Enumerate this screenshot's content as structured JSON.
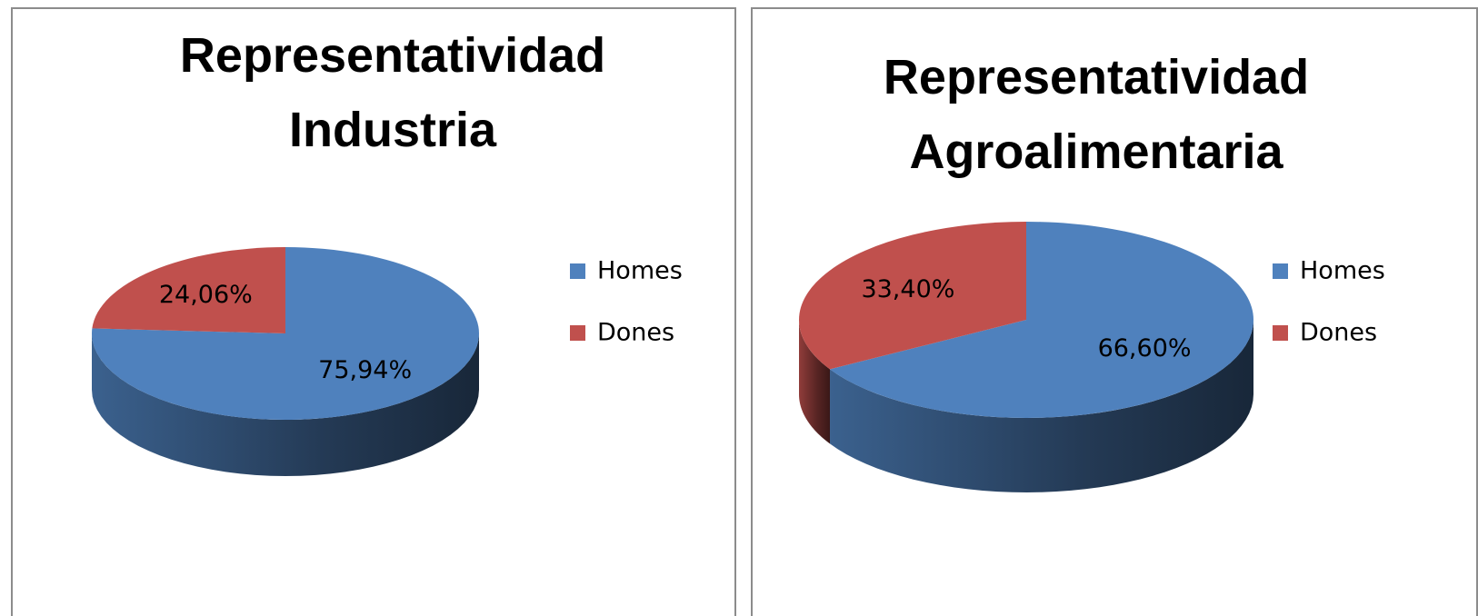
{
  "chart_data": [
    {
      "type": "pie",
      "title": "Representatividad Industria",
      "categories": [
        "Homes",
        "Dones"
      ],
      "values": [
        75.94,
        24.06
      ],
      "value_labels": [
        "75,94%",
        "24,06%"
      ],
      "colors": [
        "#4f81bd",
        "#c0504d"
      ],
      "legend": "right"
    },
    {
      "type": "pie",
      "title": "Representatividad Agroalimentaria",
      "categories": [
        "Homes",
        "Dones"
      ],
      "values": [
        66.6,
        33.4
      ],
      "value_labels": [
        "66,60%",
        "33,40%"
      ],
      "colors": [
        "#4f81bd",
        "#c0504d"
      ],
      "legend": "right"
    }
  ]
}
